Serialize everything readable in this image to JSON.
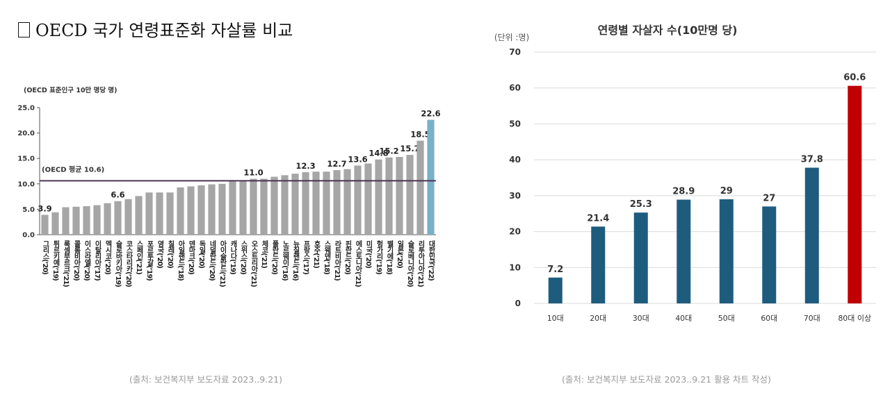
{
  "title": "OECD 국가 연령표준화 자살률 비교",
  "chart_data": [
    {
      "type": "bar",
      "unit_label": "(OECD 표준인구 10만 명당 명)",
      "ylim": [
        0,
        25
      ],
      "yticks": [
        "0.0",
        "5.0",
        "10.0",
        "15.0",
        "20.0",
        "25.0"
      ],
      "categories": [
        "그리스(’20)",
        "튀르키예(’19)",
        "룩셈부르크(’21)",
        "콜롬비아(’20)",
        "이스라엘(’20)",
        "이탈리아(’17)",
        "멕시코(’20)",
        "슬로바키아(’19)",
        "코스타리카(’20)",
        "스페인(’21)",
        "포르투갈(’19)",
        "영국(’20)",
        "칠레(’20)",
        "아일랜드(’18)",
        "덴마크(’20)",
        "독일(’20)",
        "네덜란드(’20)",
        "아이슬란드(’21)",
        "캐나다(’19)",
        "스위스(’20)",
        "오스트리아(’21)",
        "체코(’21)",
        "폴란드(’20)",
        "노르웨이(’16)",
        "뉴질랜드(’16)",
        "프랑스(’17)",
        "호주(’21)",
        "스웨덴(’18)",
        "라트비아(’21)",
        "핀란드(’20)",
        "에스토니아(’21)",
        "미국(’20)",
        "헝가리(’19)",
        "벨기에(’18)",
        "일본(’20)",
        "슬로베니아(’20)",
        "리투아니아(’21)",
        "대한민국(’22)"
      ],
      "values": [
        3.9,
        4.4,
        5.4,
        5.5,
        5.6,
        5.8,
        6.2,
        6.6,
        7.0,
        7.6,
        8.3,
        8.3,
        8.3,
        9.3,
        9.5,
        9.7,
        9.9,
        10.0,
        10.6,
        10.7,
        11.0,
        11.0,
        11.4,
        11.7,
        12.0,
        12.3,
        12.4,
        12.4,
        12.7,
        12.9,
        13.6,
        14.0,
        14.8,
        15.2,
        15.3,
        15.7,
        18.5,
        22.6
      ],
      "value_labels": [
        "3.9",
        "",
        "",
        "",
        "",
        "",
        "",
        "6.6",
        "",
        "",
        "",
        "",
        "",
        "",
        "",
        "",
        "",
        "",
        "",
        "",
        "11.0",
        "",
        "",
        "",
        "",
        "12.3",
        "",
        "",
        "12.7",
        "",
        "13.6",
        "",
        "14.8",
        "15.2",
        "",
        "15.7",
        "18.5",
        "22.6"
      ],
      "reference_line": {
        "label": "(OECD 평균 10.6)",
        "value": 10.6
      },
      "colors": {
        "bar": "#a6a6a6",
        "highlight": "#7ab0c8",
        "line": "#4b3557"
      }
    },
    {
      "type": "bar",
      "title": "연령별 자살자 수(10만명 당)",
      "unit_label": "(단위 :명)",
      "ylim": [
        0,
        70
      ],
      "yticks": [
        "0",
        "10",
        "20",
        "30",
        "40",
        "50",
        "60",
        "70"
      ],
      "categories": [
        "10대",
        "20대",
        "30대",
        "40대",
        "50대",
        "60대",
        "70대",
        "80대 이상"
      ],
      "values": [
        7.2,
        21.4,
        25.3,
        28.9,
        29,
        27,
        37.8,
        60.6
      ],
      "value_labels": [
        "7.2",
        "21.4",
        "25.3",
        "28.9",
        "29",
        "27",
        "37.8",
        "60.6"
      ],
      "colors": {
        "bar": "#1e5c7e",
        "highlight": "#c00000",
        "grid": "#d9d9d9"
      }
    }
  ],
  "sources": {
    "left": "(출처: 보건복지부 보도자료 2023..9.21)",
    "right": "(출처: 보건복지부 보도자료 2023..9.21 활용 차트 작성)"
  }
}
